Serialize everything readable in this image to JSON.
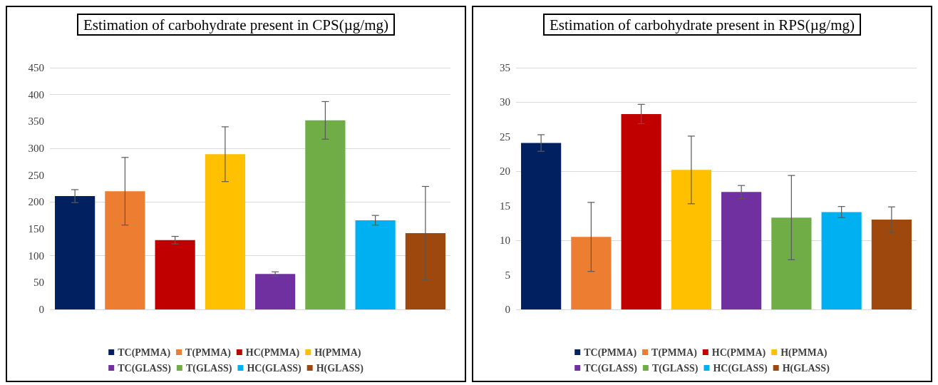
{
  "chart_data": [
    {
      "type": "bar",
      "title": "Estimation of carbohydrate present in CPS(µg/mg)",
      "categories": [
        null
      ],
      "ylim": [
        0,
        450
      ],
      "yticks": [
        0,
        50,
        100,
        150,
        200,
        250,
        300,
        350,
        400,
        450
      ],
      "grid": "y",
      "legend": "bottom",
      "series": [
        {
          "name": "TC(PMMA)",
          "color": "#002060",
          "values": [
            211
          ],
          "errors": [
            12
          ]
        },
        {
          "name": "T(PMMA)",
          "color": "#ed7d31",
          "values": [
            220
          ],
          "errors": [
            63
          ]
        },
        {
          "name": "HC(PMMA)",
          "color": "#c00000",
          "values": [
            129
          ],
          "errors": [
            7
          ]
        },
        {
          "name": "H(PMMA)",
          "color": "#ffc000",
          "values": [
            289
          ],
          "errors": [
            51
          ]
        },
        {
          "name": "TC(GLASS)",
          "color": "#7030a0",
          "values": [
            66
          ],
          "errors": [
            4
          ]
        },
        {
          "name": "T(GLASS)",
          "color": "#70ad47",
          "values": [
            352
          ],
          "errors": [
            35
          ]
        },
        {
          "name": "HC(GLASS)",
          "color": "#00b0f0",
          "values": [
            166
          ],
          "errors": [
            9
          ]
        },
        {
          "name": "H(GLASS)",
          "color": "#9e480e",
          "values": [
            142
          ],
          "errors": [
            87
          ]
        }
      ]
    },
    {
      "type": "bar",
      "title": "Estimation of carbohydrate present in RPS(µg/mg)",
      "categories": [
        null
      ],
      "ylim": [
        0,
        35
      ],
      "yticks": [
        0,
        5,
        10,
        15,
        20,
        25,
        30,
        35
      ],
      "grid": "y",
      "legend": "bottom",
      "series": [
        {
          "name": "TC(PMMA)",
          "color": "#002060",
          "values": [
            24.1
          ],
          "errors": [
            1.2
          ]
        },
        {
          "name": "T(PMMA)",
          "color": "#ed7d31",
          "values": [
            10.5
          ],
          "errors": [
            5
          ]
        },
        {
          "name": "HC(PMMA)",
          "color": "#c00000",
          "values": [
            28.3
          ],
          "errors": [
            1.4
          ]
        },
        {
          "name": "H(PMMA)",
          "color": "#ffc000",
          "values": [
            20.2
          ],
          "errors": [
            4.9
          ]
        },
        {
          "name": "TC(GLASS)",
          "color": "#7030a0",
          "values": [
            17
          ],
          "errors": [
            0.95
          ]
        },
        {
          "name": "T(GLASS)",
          "color": "#70ad47",
          "values": [
            13.3
          ],
          "errors": [
            6.1
          ]
        },
        {
          "name": "HC(GLASS)",
          "color": "#00b0f0",
          "values": [
            14.1
          ],
          "errors": [
            0.8
          ]
        },
        {
          "name": "H(GLASS)",
          "color": "#9e480e",
          "values": [
            13
          ],
          "errors": [
            1.85
          ]
        }
      ]
    }
  ]
}
